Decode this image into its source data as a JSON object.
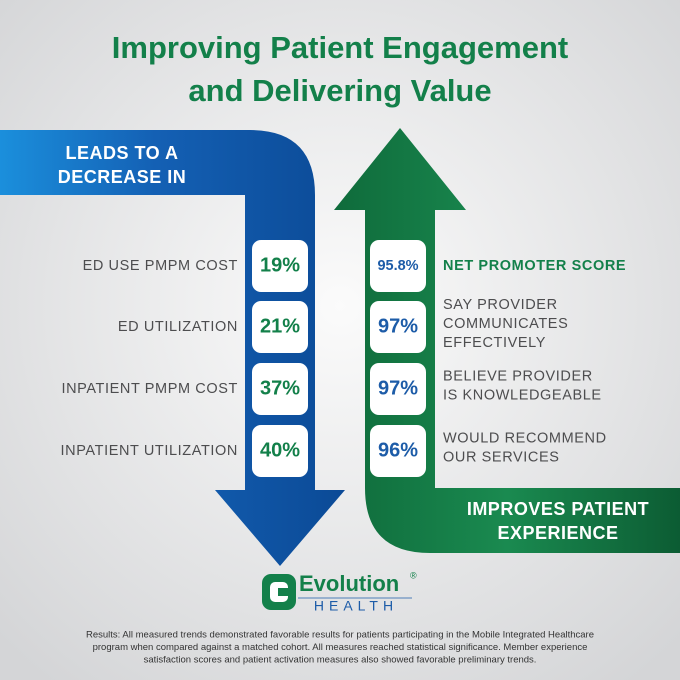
{
  "header": {
    "title_lines": [
      "Improving Patient Engagement",
      "and Delivering Value"
    ]
  },
  "left_panel": {
    "banner_lines": [
      "LEADS TO A",
      "DECREASE IN"
    ],
    "items": [
      {
        "label": "ED USE PMPM COST",
        "value": "19%"
      },
      {
        "label": "ED UTILIZATION",
        "value": "21%"
      },
      {
        "label": "INPATIENT PMPM COST",
        "value": "37%"
      },
      {
        "label": "INPATIENT UTILIZATION",
        "value": "40%"
      }
    ]
  },
  "right_panel": {
    "banner_lines": [
      "IMPROVES PATIENT",
      "EXPERIENCE"
    ],
    "items": [
      {
        "label_lines": [
          "NET PROMOTER SCORE"
        ],
        "value": "95.8%"
      },
      {
        "label_lines": [
          "SAY PROVIDER",
          "COMMUNICATES",
          "EFFECTIVELY"
        ],
        "value": "97%"
      },
      {
        "label_lines": [
          "BELIEVE PROVIDER",
          "IS KNOWLEDGEABLE"
        ],
        "value": "97%"
      },
      {
        "label_lines": [
          "WOULD RECOMMEND",
          "OUR SERVICES"
        ],
        "value": "96%"
      }
    ]
  },
  "logo": {
    "name": "Evolution",
    "mark": "®",
    "sub": "HEALTH"
  },
  "footer": {
    "lines": [
      "Results: All measured trends demonstrated favorable results for patients participating in the Mobile Integrated Healthcare",
      "program when compared against a matched cohort. All measures reached statistical significance. Member experience",
      "satisfaction scores and patient activation measures also showed favorable preliminary trends."
    ]
  }
}
